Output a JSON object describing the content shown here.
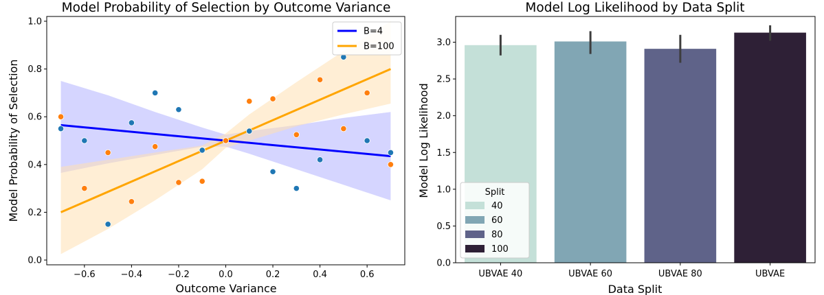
{
  "chart_data": [
    {
      "type": "scatter",
      "title": "Model Probability of Selection by Outcome Variance",
      "xlabel": "Outcome Variance",
      "ylabel": "Model Probability of Selection",
      "xlim": [
        -0.76,
        0.76
      ],
      "ylim": [
        -0.02,
        1.02
      ],
      "xticks": [
        -0.6,
        -0.4,
        -0.2,
        0.0,
        0.2,
        0.4,
        0.6
      ],
      "xtick_labels": [
        "−0.6",
        "−0.4",
        "−0.2",
        "0.0",
        "0.2",
        "0.4",
        "0.6"
      ],
      "yticks": [
        0.0,
        0.2,
        0.4,
        0.6,
        0.8,
        1.0
      ],
      "ytick_labels": [
        "0.0",
        "0.2",
        "0.4",
        "0.6",
        "0.8",
        "1.0"
      ],
      "grid": false,
      "legend_position": "top-right",
      "series": [
        {
          "name": "B=4",
          "line_color": "#0000ff",
          "band_color": "#b3b3ff",
          "point_color": "#1f77b4",
          "x": [
            -0.7,
            -0.6,
            -0.5,
            -0.4,
            -0.3,
            -0.2,
            -0.1,
            0.0,
            0.1,
            0.2,
            0.3,
            0.4,
            0.5,
            0.6,
            0.7
          ],
          "y": [
            0.55,
            0.5,
            0.15,
            0.575,
            0.7,
            0.63,
            0.46,
            0.5,
            0.54,
            0.37,
            0.3,
            0.42,
            0.85,
            0.5,
            0.45
          ],
          "fit": {
            "x": [
              -0.7,
              0.7
            ],
            "y": [
              0.565,
              0.435
            ]
          },
          "ci_upper": [
            [
              -0.7,
              0.75
            ],
            [
              -0.5,
              0.69
            ],
            [
              -0.3,
              0.62
            ],
            [
              -0.1,
              0.555
            ],
            [
              0.0,
              0.525
            ],
            [
              0.1,
              0.54
            ],
            [
              0.3,
              0.565
            ],
            [
              0.5,
              0.595
            ],
            [
              0.7,
              0.62
            ]
          ],
          "ci_lower": [
            [
              -0.7,
              0.365
            ],
            [
              -0.5,
              0.405
            ],
            [
              -0.3,
              0.44
            ],
            [
              -0.1,
              0.475
            ],
            [
              0.0,
              0.475
            ],
            [
              0.1,
              0.445
            ],
            [
              0.3,
              0.38
            ],
            [
              0.5,
              0.315
            ],
            [
              0.7,
              0.25
            ]
          ]
        },
        {
          "name": "B=100",
          "line_color": "#ffa500",
          "band_color": "#ffe0b3",
          "point_color": "#ff7f0e",
          "x": [
            -0.7,
            -0.6,
            -0.5,
            -0.4,
            -0.3,
            -0.2,
            -0.1,
            0.0,
            0.1,
            0.2,
            0.3,
            0.4,
            0.5,
            0.6,
            0.7
          ],
          "y": [
            0.6,
            0.3,
            0.45,
            0.245,
            0.475,
            0.325,
            0.33,
            0.5,
            0.665,
            0.675,
            0.525,
            0.755,
            0.55,
            0.7,
            0.4
          ],
          "fit": {
            "x": [
              -0.7,
              0.7
            ],
            "y": [
              0.2,
              0.8
            ]
          },
          "ci_upper": [
            [
              -0.7,
              0.39
            ],
            [
              -0.5,
              0.42
            ],
            [
              -0.3,
              0.45
            ],
            [
              -0.1,
              0.48
            ],
            [
              0.0,
              0.53
            ],
            [
              0.1,
              0.61
            ],
            [
              0.3,
              0.745
            ],
            [
              0.5,
              0.875
            ],
            [
              0.7,
              1.0
            ]
          ],
          "ci_lower": [
            [
              -0.7,
              0.025
            ],
            [
              -0.5,
              0.13
            ],
            [
              -0.3,
              0.25
            ],
            [
              -0.1,
              0.38
            ],
            [
              0.0,
              0.47
            ],
            [
              0.1,
              0.5
            ],
            [
              0.3,
              0.56
            ],
            [
              0.5,
              0.61
            ],
            [
              0.7,
              0.655
            ]
          ]
        }
      ]
    },
    {
      "type": "bar",
      "title": "Model Log Likelihood by Data Split",
      "xlabel": "Data Split",
      "ylabel": "Model Log Likelihood",
      "categories": [
        "UBVAE 40",
        "UBVAE 60",
        "UBVAE 80",
        "UBVAE"
      ],
      "values": [
        2.96,
        3.01,
        2.91,
        3.13
      ],
      "error_low": [
        2.82,
        2.84,
        2.72,
        3.02
      ],
      "error_high": [
        3.1,
        3.15,
        3.1,
        3.23
      ],
      "colors": [
        "#c4e0d8",
        "#81a6b4",
        "#5f6389",
        "#2e2036"
      ],
      "ylim": [
        0,
        3.35
      ],
      "yticks": [
        0.0,
        0.5,
        1.0,
        1.5,
        2.0,
        2.5,
        3.0
      ],
      "ytick_labels": [
        "0.0",
        "0.5",
        "1.0",
        "1.5",
        "2.0",
        "2.5",
        "3.0"
      ],
      "grid": false,
      "legend_title": "Split",
      "legend_labels": [
        "40",
        "60",
        "80",
        "100"
      ],
      "legend_position": "bottom-left"
    }
  ]
}
